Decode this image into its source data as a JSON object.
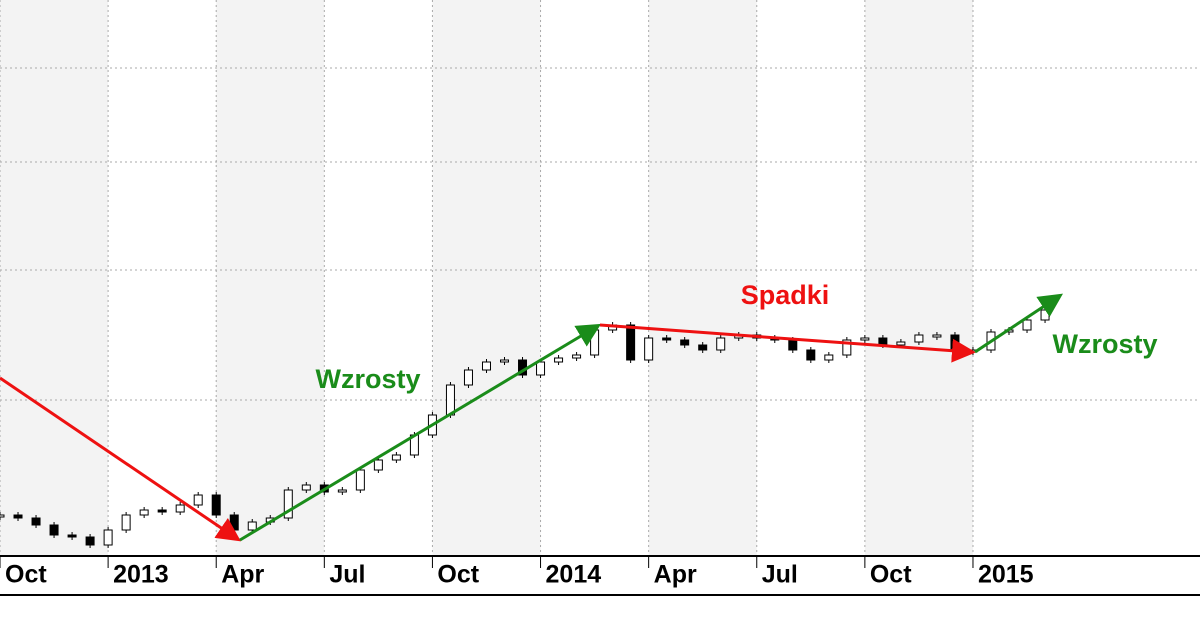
{
  "chart_data": {
    "type": "candlestick",
    "annotations": [
      {
        "text": "Wzrosty",
        "color": "#1a8c1a"
      },
      {
        "text": "Spadki",
        "color": "#ee1111"
      },
      {
        "text": "Wzrosty",
        "color": "#1a8c1a"
      }
    ],
    "x": [
      0,
      0.5,
      1,
      1.5,
      2,
      2.5,
      3,
      3.5,
      4,
      4.5,
      5,
      5.5,
      6,
      6.5,
      7,
      7.5,
      8,
      8.5,
      9,
      9.5,
      10,
      10.5,
      11,
      11.5,
      12,
      12.5,
      13,
      13.5,
      14,
      14.5,
      15,
      15.5,
      16,
      16.5,
      17,
      17.5,
      18,
      18.5,
      19,
      19.5,
      20,
      20.5,
      21,
      21.5,
      22,
      22.5,
      23,
      23.5,
      24,
      24.5,
      25,
      25.5,
      26,
      26.5,
      27,
      27.5,
      28,
      28.5,
      29
    ],
    "series": [
      {
        "color": "#000000",
        "values": [
          41,
          38,
          31,
          21,
          19,
          11,
          26,
          41,
          46,
          44,
          51,
          61,
          41,
          26,
          34,
          38,
          66,
          71,
          64,
          66,
          86,
          96,
          101,
          121,
          141,
          171,
          186,
          194,
          196,
          181,
          194,
          198,
          201,
          226,
          231,
          196,
          218,
          216,
          211,
          206,
          218,
          221,
          218,
          216,
          206,
          196,
          201,
          216,
          218,
          211,
          214,
          221,
          221,
          206,
          206,
          224,
          226,
          236,
          246
        ]
      }
    ],
    "xlim": [
      0,
      33.3
    ],
    "xticks": [
      {
        "value": 0,
        "label": "Oct"
      },
      {
        "value": 3,
        "label": "2013"
      },
      {
        "value": 6,
        "label": "Apr"
      },
      {
        "value": 9,
        "label": "Jul"
      },
      {
        "value": 12,
        "label": "Oct"
      },
      {
        "value": 15,
        "label": "2014"
      },
      {
        "value": 18,
        "label": "Apr"
      },
      {
        "value": 21,
        "label": "Jul"
      },
      {
        "value": 24,
        "label": "Oct"
      },
      {
        "value": 27,
        "label": "2015"
      }
    ],
    "ylim": [
      0,
      556
    ],
    "grid": true
  }
}
